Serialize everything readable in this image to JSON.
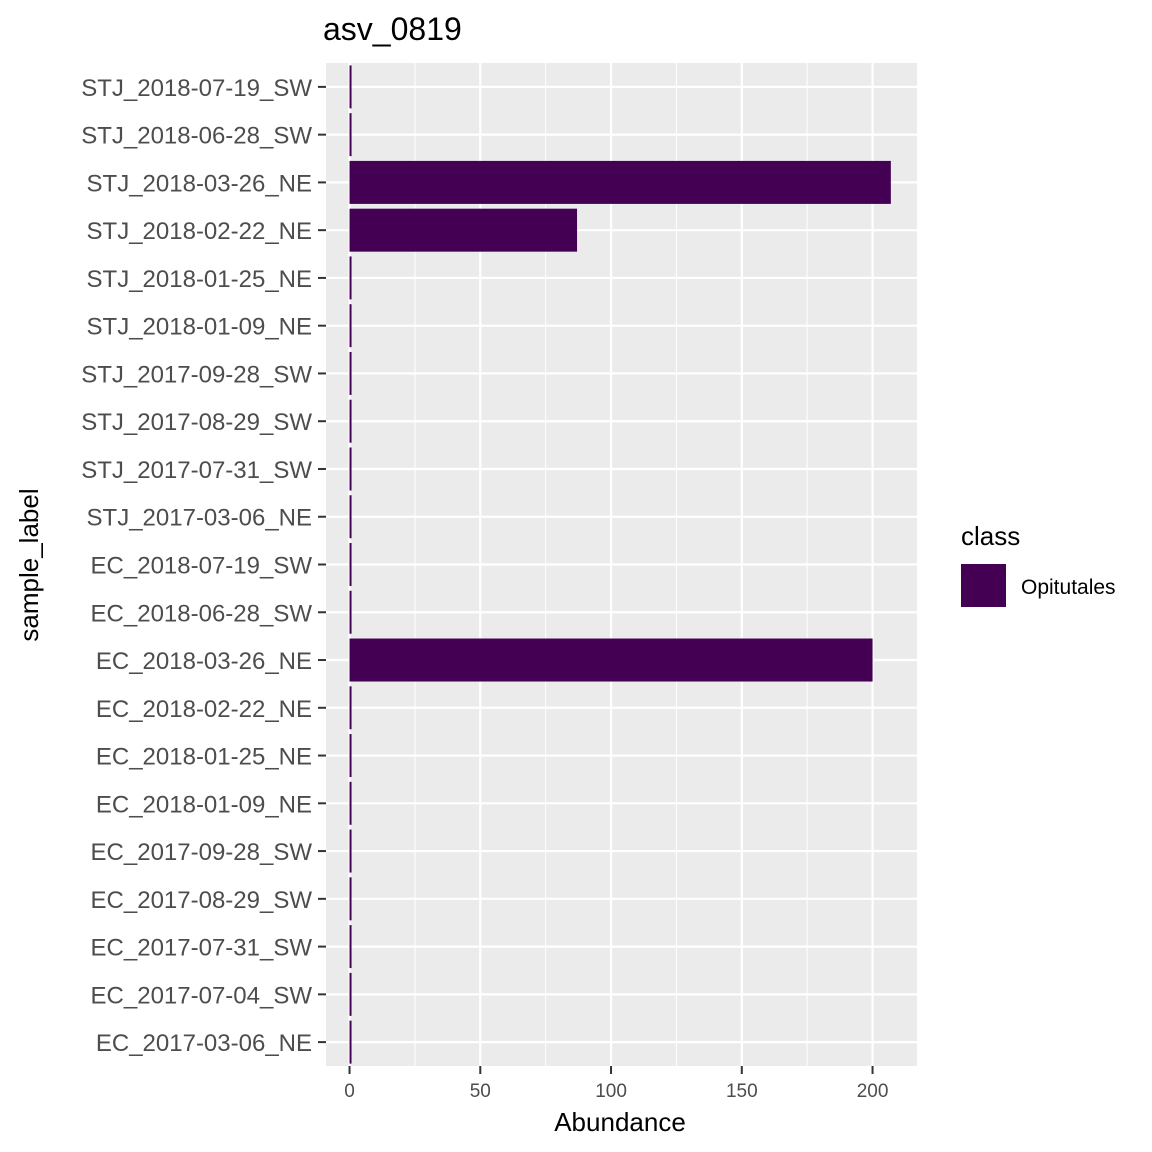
{
  "chart_data": {
    "type": "bar",
    "orientation": "horizontal",
    "title": "asv_0819",
    "xlabel": "Abundance",
    "ylabel": "sample_label",
    "xlim": [
      -9,
      217
    ],
    "xticks": [
      0,
      50,
      100,
      150,
      200
    ],
    "grid": true,
    "categories": [
      "STJ_2018-07-19_SW",
      "STJ_2018-06-28_SW",
      "STJ_2018-03-26_NE",
      "STJ_2018-02-22_NE",
      "STJ_2018-01-25_NE",
      "STJ_2018-01-09_NE",
      "STJ_2017-09-28_SW",
      "STJ_2017-08-29_SW",
      "STJ_2017-07-31_SW",
      "STJ_2017-03-06_NE",
      "EC_2018-07-19_SW",
      "EC_2018-06-28_SW",
      "EC_2018-03-26_NE",
      "EC_2018-02-22_NE",
      "EC_2018-01-25_NE",
      "EC_2018-01-09_NE",
      "EC_2017-09-28_SW",
      "EC_2017-08-29_SW",
      "EC_2017-07-31_SW",
      "EC_2017-07-04_SW",
      "EC_2017-03-06_NE"
    ],
    "values": [
      0,
      0,
      207,
      87,
      0,
      0,
      0,
      0,
      0,
      0,
      0,
      0,
      200,
      0,
      0,
      0,
      0,
      0,
      0,
      0,
      0
    ],
    "legend": {
      "title": "class",
      "position": "right",
      "entries": [
        {
          "label": "Opitutales",
          "color": "#440154"
        }
      ]
    },
    "colors": {
      "bar": "#440154",
      "panel_background": "#ebebeb",
      "grid": "#ffffff"
    }
  }
}
